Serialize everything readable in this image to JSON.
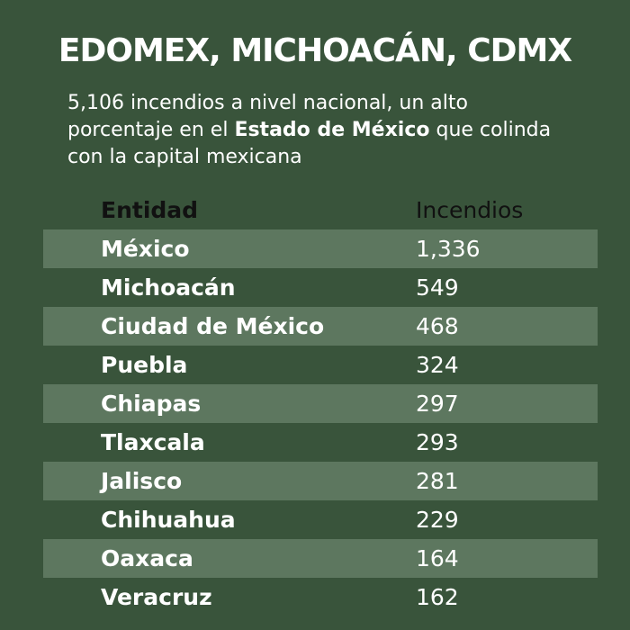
{
  "title": "EDOMEX, MICHOACÁN, CDMX",
  "subtitle": [
    "5,106  incendios a nivel nacional, un alto porcentaje en el",
    "Estado de México",
    "que colinda con la capital mexicana"
  ],
  "table": {
    "header": [
      "Entidad",
      "Incendios"
    ],
    "rows": [
      [
        "México",
        "1,336"
      ],
      [
        "Michoacán",
        "549"
      ],
      [
        "Ciudad de México",
        "468"
      ],
      [
        "Puebla",
        "324"
      ],
      [
        "Chiapas",
        "297"
      ],
      [
        "Tlaxcala",
        "293"
      ],
      [
        "Jalisco",
        "281"
      ],
      [
        "Chihuahua",
        "229"
      ],
      [
        "Oaxaca",
        "164"
      ],
      [
        "Veracruz",
        "162"
      ]
    ]
  }
}
